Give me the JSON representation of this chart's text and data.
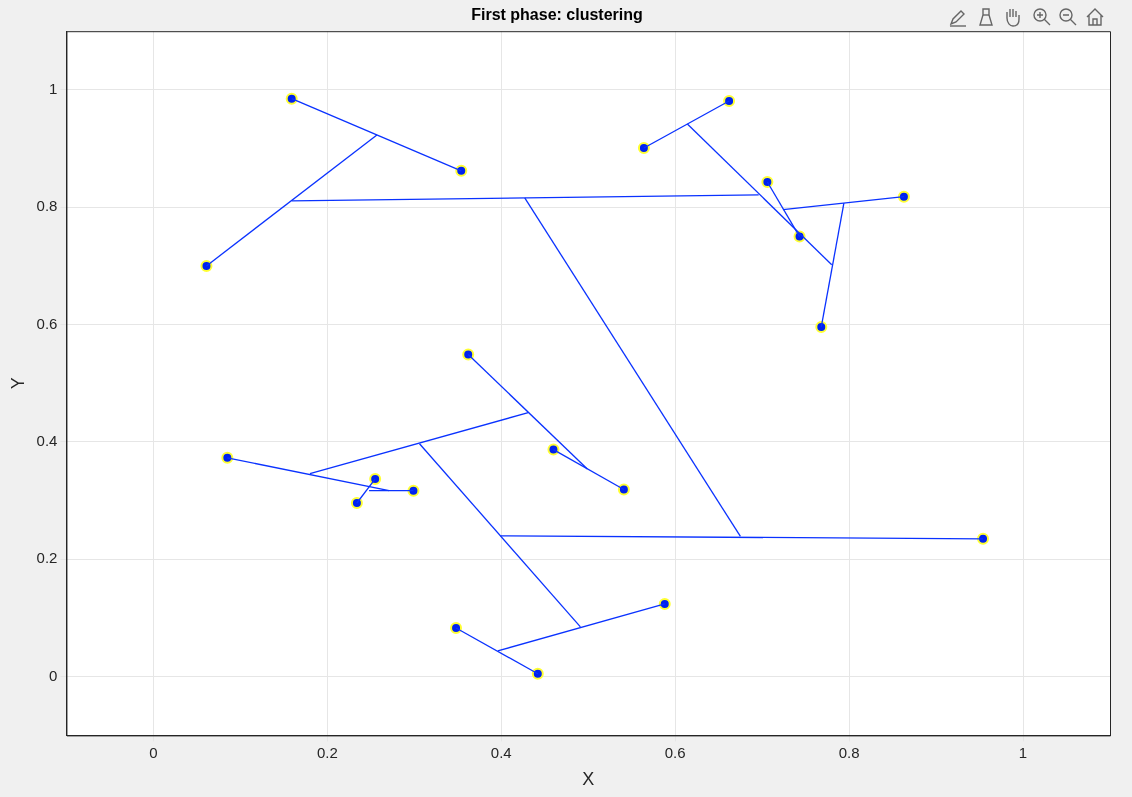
{
  "chart_data": {
    "type": "scatter",
    "title": "First phase: clustering",
    "xlabel": "X",
    "ylabel": "Y",
    "xlim": [
      -0.1,
      1.1
    ],
    "ylim": [
      -0.1,
      1.1
    ],
    "xticks": [
      0,
      0.2,
      0.4,
      0.6,
      0.8,
      1
    ],
    "yticks": [
      0,
      0.2,
      0.4,
      0.6,
      0.8,
      1
    ],
    "grid": true,
    "legend": false,
    "series": [
      {
        "type": "line",
        "color": "#0a32ff",
        "x": [
          0.159,
          0.354
        ],
        "values": [
          0.985,
          0.862
        ]
      },
      {
        "type": "line",
        "color": "#0a32ff",
        "x": [
          0.061,
          0.257
        ],
        "values": [
          0.7,
          0.923
        ]
      },
      {
        "type": "line",
        "color": "#0a32ff",
        "x": [
          0.159,
          0.696
        ],
        "values": [
          0.811,
          0.821
        ]
      },
      {
        "type": "line",
        "color": "#0a32ff",
        "x": [
          0.427,
          0.675
        ],
        "values": [
          0.816,
          0.239
        ]
      },
      {
        "type": "line",
        "color": "#0a32ff",
        "x": [
          0.399,
          0.954
        ],
        "values": [
          0.24,
          0.235
        ]
      },
      {
        "type": "line",
        "color": "#0a32ff",
        "x": [
          0.564,
          0.662
        ],
        "values": [
          0.901,
          0.981
        ]
      },
      {
        "type": "line",
        "color": "#0a32ff",
        "x": [
          0.614,
          0.78
        ],
        "values": [
          0.942,
          0.702
        ]
      },
      {
        "type": "line",
        "color": "#0a32ff",
        "x": [
          0.706,
          0.743
        ],
        "values": [
          0.843,
          0.75
        ]
      },
      {
        "type": "line",
        "color": "#0a32ff",
        "x": [
          0.724,
          0.863
        ],
        "values": [
          0.796,
          0.818
        ]
      },
      {
        "type": "line",
        "color": "#0a32ff",
        "x": [
          0.794,
          0.768
        ],
        "values": [
          0.807,
          0.596
        ]
      },
      {
        "type": "line",
        "color": "#0a32ff",
        "x": [
          0.46,
          0.541
        ],
        "values": [
          0.387,
          0.319
        ]
      },
      {
        "type": "line",
        "color": "#0a32ff",
        "x": [
          0.362,
          0.499
        ],
        "values": [
          0.549,
          0.354
        ]
      },
      {
        "type": "line",
        "color": "#0a32ff",
        "x": [
          0.18,
          0.431
        ],
        "values": [
          0.346,
          0.45
        ]
      },
      {
        "type": "line",
        "color": "#0a32ff",
        "x": [
          0.234,
          0.255
        ],
        "values": [
          0.296,
          0.337
        ]
      },
      {
        "type": "line",
        "color": "#0a32ff",
        "x": [
          0.248,
          0.299
        ],
        "values": [
          0.317,
          0.317
        ]
      },
      {
        "type": "line",
        "color": "#0a32ff",
        "x": [
          0.085,
          0.271
        ],
        "values": [
          0.373,
          0.317
        ]
      },
      {
        "type": "line",
        "color": "#0a32ff",
        "x": [
          0.306,
          0.491
        ],
        "values": [
          0.397,
          0.085
        ]
      },
      {
        "type": "line",
        "color": "#0a32ff",
        "x": [
          0.348,
          0.442
        ],
        "values": [
          0.083,
          0.005
        ]
      },
      {
        "type": "line",
        "color": "#0a32ff",
        "x": [
          0.396,
          0.588
        ],
        "values": [
          0.044,
          0.124
        ]
      },
      {
        "marker": "circle",
        "color": "#0022ee",
        "x": [
          0.159,
          0.354,
          0.061,
          0.564,
          0.662,
          0.706,
          0.743,
          0.863,
          0.768,
          0.362,
          0.46,
          0.541,
          0.085,
          0.255,
          0.234,
          0.299,
          0.954,
          0.588,
          0.348,
          0.442
        ],
        "values": [
          0.985,
          0.862,
          0.7,
          0.901,
          0.981,
          0.843,
          0.75,
          0.818,
          0.596,
          0.549,
          0.387,
          0.319,
          0.373,
          0.337,
          0.296,
          0.317,
          0.235,
          0.124,
          0.083,
          0.005
        ]
      }
    ]
  }
}
